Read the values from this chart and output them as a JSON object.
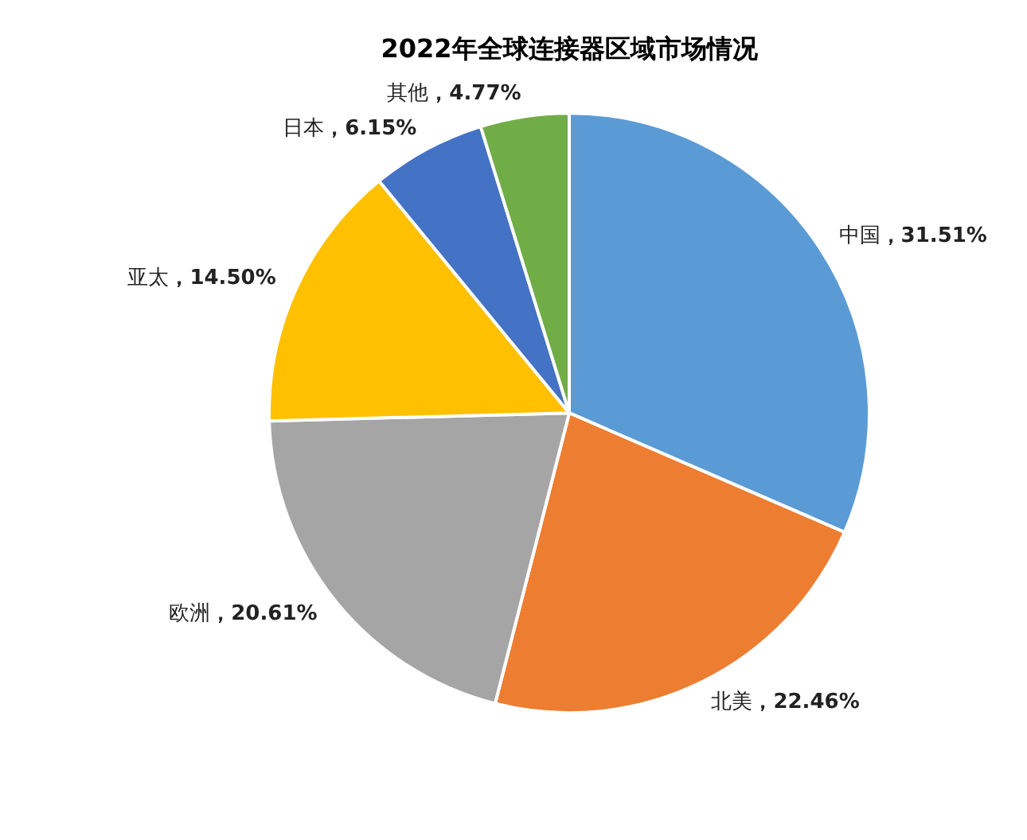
{
  "chart_data": {
    "type": "pie",
    "title": "2022年全球连接器区域市场情况",
    "categories": [
      "中国",
      "北美",
      "欧洲",
      "亚太",
      "日本",
      "其他"
    ],
    "values": [
      31.51,
      22.46,
      20.61,
      14.5,
      6.15,
      4.77
    ],
    "colors": [
      "#5b9bd5",
      "#ed7d31",
      "#a5a5a5",
      "#ffc000",
      "#4472c4",
      "#70ad47"
    ],
    "value_labels": [
      "，31.51%",
      "，22.46%",
      "，20.61%",
      "，14.50%",
      "，6.15%",
      "，4.77%"
    ],
    "legend": false
  }
}
